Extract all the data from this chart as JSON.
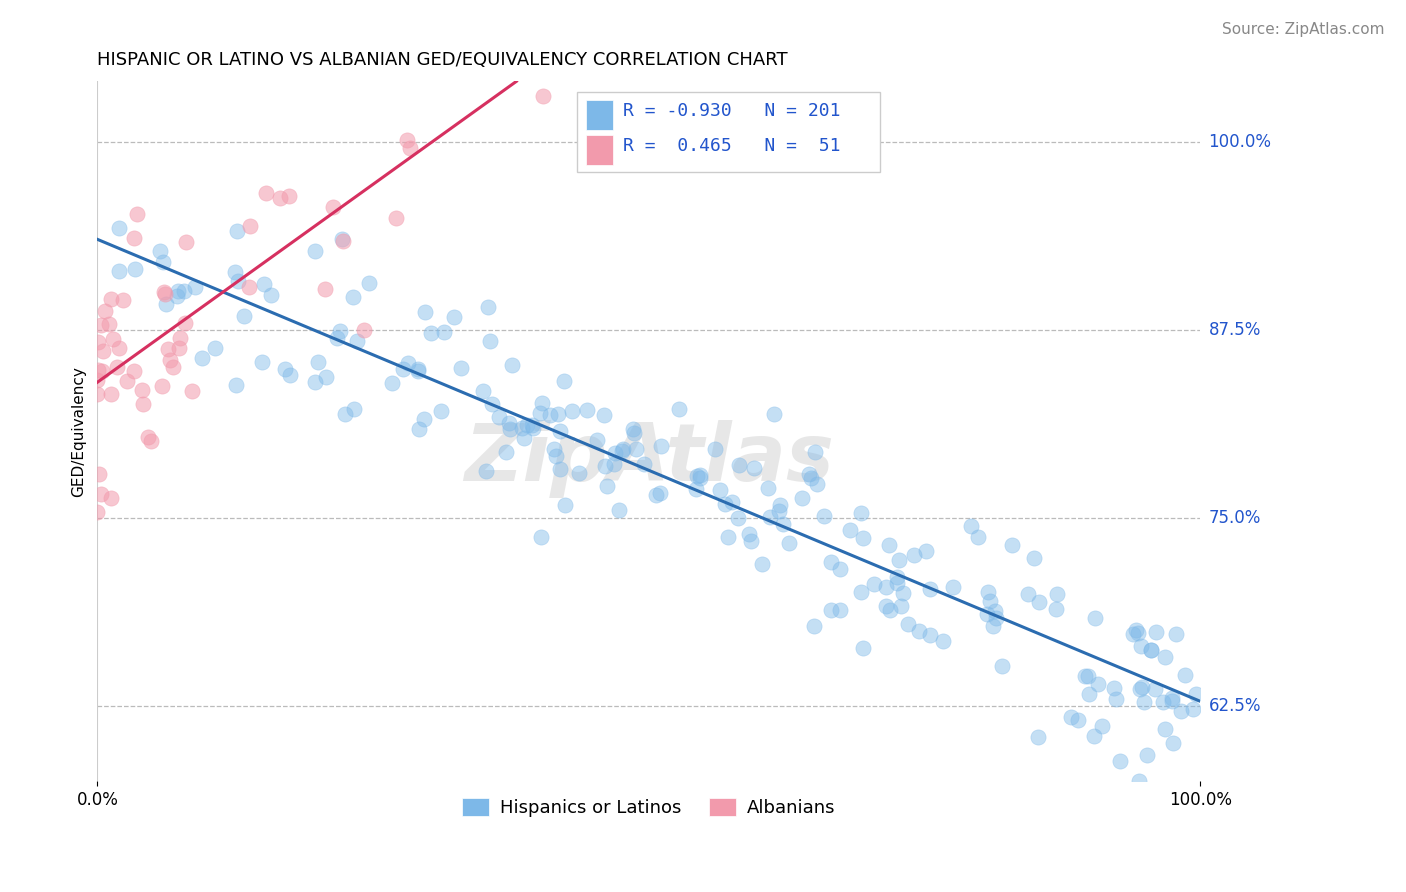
{
  "title": "HISPANIC OR LATINO VS ALBANIAN GED/EQUIVALENCY CORRELATION CHART",
  "source_text": "Source: ZipAtlas.com",
  "ylabel": "GED/Equivalency",
  "legend_label_1": "Hispanics or Latinos",
  "legend_label_2": "Albanians",
  "r1": "-0.930",
  "n1": "201",
  "r2": "0.465",
  "n2": "51",
  "blue_color": "#7db8e8",
  "pink_color": "#f29aac",
  "blue_line_color": "#2b6cb0",
  "pink_line_color": "#d63060",
  "watermark": "ZipAtlas",
  "xmin": 0.0,
  "xmax": 1.0,
  "ymin": 0.575,
  "ymax": 1.04,
  "yticks": [
    0.625,
    0.75,
    0.875,
    1.0
  ],
  "ytick_labels": [
    "62.5%",
    "75.0%",
    "87.5%",
    "100.0%"
  ],
  "xtick_labels": [
    "0.0%",
    "100.0%"
  ],
  "blue_scatter_seed": 42,
  "pink_scatter_seed": 7,
  "title_fontsize": 13,
  "axis_label_fontsize": 11,
  "tick_fontsize": 12,
  "legend_fontsize": 13,
  "source_fontsize": 11,
  "blue_line_y0": 0.935,
  "blue_line_y1": 0.628,
  "pink_line_x0": 0.0,
  "pink_line_x1": 0.38,
  "pink_line_y0": 0.84,
  "pink_line_y1": 1.04
}
